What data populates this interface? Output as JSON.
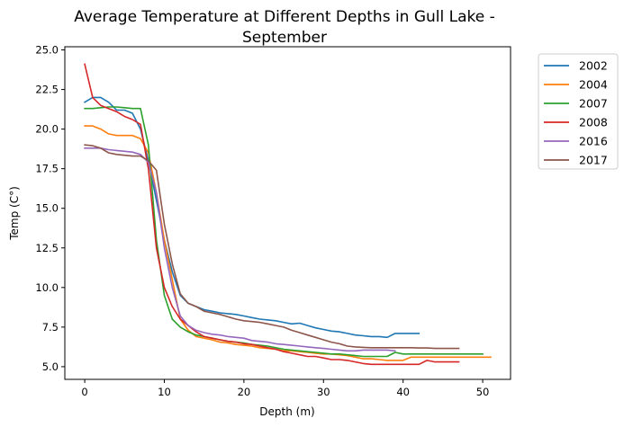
{
  "chart_data": {
    "type": "line",
    "title_line1": "Average Temperature at Different Depths in Gull Lake -",
    "title_line2": "September",
    "xlabel": "Depth (m)",
    "ylabel": "Temp (C°)",
    "xlim": [
      -2.5,
      53.5
    ],
    "ylim": [
      4.2,
      25.2
    ],
    "xticks": [
      0,
      10,
      20,
      30,
      40,
      50
    ],
    "xtick_labels": [
      "0",
      "10",
      "20",
      "30",
      "40",
      "50"
    ],
    "yticks": [
      5.0,
      7.5,
      10.0,
      12.5,
      15.0,
      17.5,
      20.0,
      22.5,
      25.0
    ],
    "ytick_labels": [
      "5.0",
      "7.5",
      "10.0",
      "12.5",
      "15.0",
      "17.5",
      "20.0",
      "22.5",
      "25.0"
    ],
    "grid": false,
    "legend_position": "outside-top-right",
    "series": [
      {
        "name": "2002",
        "color": "#1f77b4",
        "points": [
          [
            0,
            21.7
          ],
          [
            1,
            22.0
          ],
          [
            2,
            22.0
          ],
          [
            3,
            21.7
          ],
          [
            4,
            21.2
          ],
          [
            5,
            21.2
          ],
          [
            6,
            21.0
          ],
          [
            7,
            20.0
          ],
          [
            8,
            18.0
          ],
          [
            9,
            15.5
          ],
          [
            10,
            13.0
          ],
          [
            11,
            11.0
          ],
          [
            12,
            9.5
          ],
          [
            13,
            9.0
          ],
          [
            14,
            8.8
          ],
          [
            15,
            8.6
          ],
          [
            16,
            8.5
          ],
          [
            17,
            8.4
          ],
          [
            18,
            8.35
          ],
          [
            19,
            8.3
          ],
          [
            20,
            8.2
          ],
          [
            21,
            8.1
          ],
          [
            22,
            8.0
          ],
          [
            23,
            7.95
          ],
          [
            24,
            7.9
          ],
          [
            25,
            7.8
          ],
          [
            26,
            7.7
          ],
          [
            27,
            7.75
          ],
          [
            28,
            7.6
          ],
          [
            29,
            7.45
          ],
          [
            30,
            7.35
          ],
          [
            31,
            7.25
          ],
          [
            32,
            7.2
          ],
          [
            33,
            7.1
          ],
          [
            34,
            7.0
          ],
          [
            35,
            6.95
          ],
          [
            36,
            6.9
          ],
          [
            37,
            6.9
          ],
          [
            38,
            6.85
          ],
          [
            39,
            7.1
          ],
          [
            40,
            7.1
          ],
          [
            41,
            7.1
          ],
          [
            42,
            7.1
          ]
        ]
      },
      {
        "name": "2004",
        "color": "#ff7f0e",
        "points": [
          [
            0,
            20.2
          ],
          [
            1,
            20.2
          ],
          [
            2,
            20.0
          ],
          [
            3,
            19.7
          ],
          [
            4,
            19.6
          ],
          [
            5,
            19.6
          ],
          [
            6,
            19.6
          ],
          [
            7,
            19.4
          ],
          [
            8,
            18.5
          ],
          [
            9,
            16.0
          ],
          [
            10,
            13.0
          ],
          [
            11,
            10.5
          ],
          [
            12,
            8.0
          ],
          [
            13,
            7.3
          ],
          [
            14,
            6.9
          ],
          [
            15,
            6.8
          ],
          [
            16,
            6.7
          ],
          [
            17,
            6.55
          ],
          [
            18,
            6.5
          ],
          [
            19,
            6.4
          ],
          [
            20,
            6.35
          ],
          [
            21,
            6.3
          ],
          [
            22,
            6.2
          ],
          [
            23,
            6.15
          ],
          [
            24,
            6.1
          ],
          [
            25,
            6.0
          ],
          [
            26,
            6.0
          ],
          [
            27,
            5.95
          ],
          [
            28,
            5.9
          ],
          [
            29,
            5.85
          ],
          [
            30,
            5.8
          ],
          [
            31,
            5.8
          ],
          [
            32,
            5.75
          ],
          [
            33,
            5.7
          ],
          [
            34,
            5.6
          ],
          [
            35,
            5.5
          ],
          [
            36,
            5.5
          ],
          [
            37,
            5.45
          ],
          [
            38,
            5.4
          ],
          [
            39,
            5.4
          ],
          [
            40,
            5.4
          ],
          [
            41,
            5.6
          ],
          [
            42,
            5.6
          ],
          [
            43,
            5.6
          ],
          [
            44,
            5.6
          ],
          [
            45,
            5.6
          ],
          [
            46,
            5.6
          ],
          [
            47,
            5.6
          ],
          [
            48,
            5.6
          ],
          [
            49,
            5.6
          ],
          [
            50,
            5.6
          ],
          [
            51,
            5.6
          ]
        ]
      },
      {
        "name": "2007",
        "color": "#2ca02c",
        "points": [
          [
            0,
            21.3
          ],
          [
            1,
            21.3
          ],
          [
            2,
            21.35
          ],
          [
            3,
            21.4
          ],
          [
            4,
            21.4
          ],
          [
            5,
            21.35
          ],
          [
            6,
            21.3
          ],
          [
            7,
            21.3
          ],
          [
            8,
            19.0
          ],
          [
            9,
            13.0
          ],
          [
            10,
            9.5
          ],
          [
            11,
            8.0
          ],
          [
            12,
            7.5
          ],
          [
            13,
            7.2
          ],
          [
            14,
            7.0
          ],
          [
            15,
            6.9
          ],
          [
            16,
            6.8
          ],
          [
            17,
            6.7
          ],
          [
            18,
            6.6
          ],
          [
            19,
            6.55
          ],
          [
            20,
            6.5
          ],
          [
            21,
            6.4
          ],
          [
            22,
            6.35
          ],
          [
            23,
            6.3
          ],
          [
            24,
            6.2
          ],
          [
            25,
            6.1
          ],
          [
            26,
            6.05
          ],
          [
            27,
            6.0
          ],
          [
            28,
            5.95
          ],
          [
            29,
            5.9
          ],
          [
            30,
            5.85
          ],
          [
            31,
            5.8
          ],
          [
            32,
            5.8
          ],
          [
            33,
            5.75
          ],
          [
            34,
            5.7
          ],
          [
            35,
            5.65
          ],
          [
            36,
            5.65
          ],
          [
            37,
            5.65
          ],
          [
            38,
            5.65
          ],
          [
            39,
            5.9
          ],
          [
            40,
            5.8
          ],
          [
            41,
            5.8
          ],
          [
            42,
            5.8
          ],
          [
            43,
            5.8
          ],
          [
            44,
            5.8
          ],
          [
            45,
            5.8
          ],
          [
            46,
            5.8
          ],
          [
            47,
            5.8
          ],
          [
            48,
            5.8
          ],
          [
            49,
            5.8
          ],
          [
            50,
            5.8
          ]
        ]
      },
      {
        "name": "2008",
        "color": "#d62728",
        "points": [
          [
            0,
            24.1
          ],
          [
            1,
            22.0
          ],
          [
            2,
            21.5
          ],
          [
            3,
            21.3
          ],
          [
            4,
            21.1
          ],
          [
            5,
            20.8
          ],
          [
            6,
            20.6
          ],
          [
            7,
            20.3
          ],
          [
            8,
            17.5
          ],
          [
            9,
            12.5
          ],
          [
            10,
            10.0
          ],
          [
            11,
            8.8
          ],
          [
            12,
            8.0
          ],
          [
            13,
            7.6
          ],
          [
            14,
            7.2
          ],
          [
            15,
            6.9
          ],
          [
            16,
            6.8
          ],
          [
            17,
            6.7
          ],
          [
            18,
            6.6
          ],
          [
            19,
            6.55
          ],
          [
            20,
            6.45
          ],
          [
            21,
            6.4
          ],
          [
            22,
            6.3
          ],
          [
            23,
            6.2
          ],
          [
            24,
            6.1
          ],
          [
            25,
            5.95
          ],
          [
            26,
            5.85
          ],
          [
            27,
            5.75
          ],
          [
            28,
            5.65
          ],
          [
            29,
            5.65
          ],
          [
            30,
            5.55
          ],
          [
            31,
            5.45
          ],
          [
            32,
            5.45
          ],
          [
            33,
            5.4
          ],
          [
            34,
            5.3
          ],
          [
            35,
            5.2
          ],
          [
            36,
            5.15
          ],
          [
            37,
            5.15
          ],
          [
            38,
            5.15
          ],
          [
            39,
            5.15
          ],
          [
            40,
            5.15
          ],
          [
            41,
            5.15
          ],
          [
            42,
            5.15
          ],
          [
            43,
            5.4
          ],
          [
            44,
            5.3
          ],
          [
            45,
            5.3
          ],
          [
            46,
            5.3
          ],
          [
            47,
            5.3
          ]
        ]
      },
      {
        "name": "2016",
        "color": "#9467bd",
        "points": [
          [
            0,
            18.8
          ],
          [
            1,
            18.8
          ],
          [
            2,
            18.8
          ],
          [
            3,
            18.7
          ],
          [
            4,
            18.65
          ],
          [
            5,
            18.6
          ],
          [
            6,
            18.55
          ],
          [
            7,
            18.4
          ],
          [
            8,
            17.9
          ],
          [
            9,
            16.0
          ],
          [
            10,
            12.5
          ],
          [
            11,
            10.0
          ],
          [
            12,
            8.2
          ],
          [
            13,
            7.6
          ],
          [
            14,
            7.3
          ],
          [
            15,
            7.15
          ],
          [
            16,
            7.05
          ],
          [
            17,
            7.0
          ],
          [
            18,
            6.9
          ],
          [
            19,
            6.85
          ],
          [
            20,
            6.8
          ],
          [
            21,
            6.65
          ],
          [
            22,
            6.6
          ],
          [
            23,
            6.55
          ],
          [
            24,
            6.45
          ],
          [
            25,
            6.4
          ],
          [
            26,
            6.35
          ],
          [
            27,
            6.3
          ],
          [
            28,
            6.25
          ],
          [
            29,
            6.2
          ],
          [
            30,
            6.15
          ],
          [
            31,
            6.1
          ],
          [
            32,
            6.05
          ],
          [
            33,
            6.0
          ],
          [
            34,
            6.0
          ],
          [
            35,
            6.05
          ],
          [
            36,
            6.05
          ],
          [
            37,
            6.05
          ],
          [
            38,
            6.05
          ],
          [
            39,
            6.0
          ]
        ]
      },
      {
        "name": "2017",
        "color": "#8c564b",
        "points": [
          [
            0,
            19.0
          ],
          [
            1,
            18.95
          ],
          [
            2,
            18.8
          ],
          [
            3,
            18.5
          ],
          [
            4,
            18.4
          ],
          [
            5,
            18.35
          ],
          [
            6,
            18.3
          ],
          [
            7,
            18.3
          ],
          [
            8,
            18.0
          ],
          [
            9,
            17.4
          ],
          [
            10,
            14.0
          ],
          [
            11,
            11.5
          ],
          [
            12,
            9.6
          ],
          [
            13,
            9.0
          ],
          [
            14,
            8.8
          ],
          [
            15,
            8.5
          ],
          [
            16,
            8.4
          ],
          [
            17,
            8.3
          ],
          [
            18,
            8.15
          ],
          [
            19,
            8.0
          ],
          [
            20,
            7.9
          ],
          [
            21,
            7.85
          ],
          [
            22,
            7.8
          ],
          [
            23,
            7.7
          ],
          [
            24,
            7.6
          ],
          [
            25,
            7.5
          ],
          [
            26,
            7.3
          ],
          [
            27,
            7.15
          ],
          [
            28,
            7.0
          ],
          [
            29,
            6.85
          ],
          [
            30,
            6.7
          ],
          [
            31,
            6.55
          ],
          [
            32,
            6.45
          ],
          [
            33,
            6.3
          ],
          [
            34,
            6.25
          ],
          [
            35,
            6.22
          ],
          [
            36,
            6.2
          ],
          [
            37,
            6.2
          ],
          [
            38,
            6.2
          ],
          [
            39,
            6.2
          ],
          [
            40,
            6.2
          ],
          [
            41,
            6.2
          ],
          [
            42,
            6.18
          ],
          [
            43,
            6.18
          ],
          [
            44,
            6.15
          ],
          [
            45,
            6.15
          ],
          [
            46,
            6.15
          ],
          [
            47,
            6.15
          ]
        ]
      }
    ]
  }
}
